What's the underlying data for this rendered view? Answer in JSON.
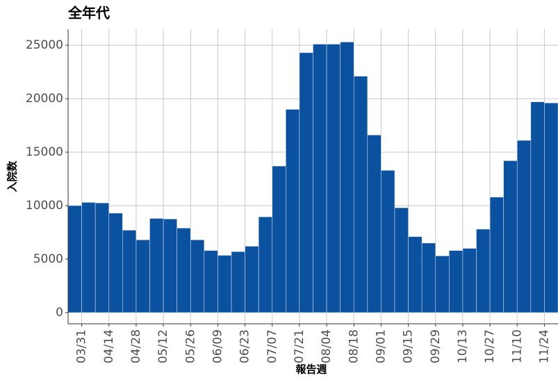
{
  "chart_data": {
    "type": "bar",
    "title": "全年代",
    "x_label": "報告週",
    "y_label": "入院数",
    "color": "#0a52a0",
    "grid": true,
    "categories": [
      null,
      "03/31",
      null,
      "04/14",
      null,
      "04/28",
      null,
      "05/12",
      null,
      "05/26",
      null,
      "06/09",
      null,
      "06/23",
      null,
      "07/07",
      null,
      "07/21",
      null,
      "08/04",
      null,
      "08/18",
      null,
      "09/01",
      null,
      "09/15",
      null,
      "09/29",
      null,
      "10/13",
      null,
      "10/27",
      null,
      "11/10",
      null,
      "11/24"
    ],
    "values": [
      10000,
      10300,
      10250,
      9300,
      7700,
      6800,
      8800,
      8750,
      7900,
      6800,
      5800,
      5350,
      5700,
      6200,
      8950,
      13700,
      19000,
      24300,
      25100,
      25100,
      25300,
      22100,
      16600,
      13300,
      9800,
      7100,
      6500,
      5300,
      5800,
      6000,
      7800,
      10800,
      14200,
      16100,
      19700,
      19600
    ],
    "ylim": [
      -1050,
      26500
    ],
    "yticks": [
      0,
      5000,
      10000,
      15000,
      20000,
      25000
    ]
  }
}
